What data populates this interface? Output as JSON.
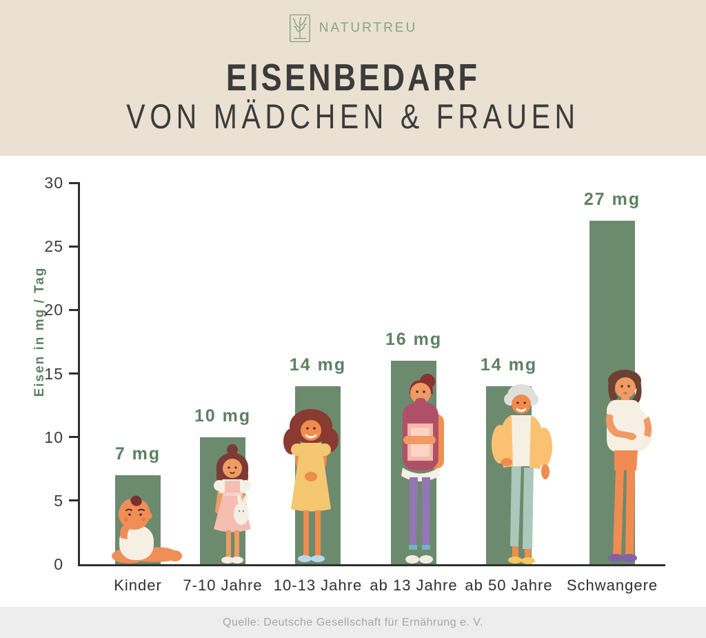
{
  "brand": {
    "name": "NATURTREU",
    "color": "#8aa385"
  },
  "title": {
    "line1": "EISENBEDARF",
    "line2": "VON MÄDCHEN & FRAUEN"
  },
  "chart_data": {
    "type": "bar",
    "title": "Eisenbedarf von Mädchen & Frauen",
    "categories": [
      "Kinder",
      "7-10 Jahre",
      "10-13 Jahre",
      "ab 13 Jahre",
      "ab 50 Jahre",
      "Schwangere"
    ],
    "values": [
      7,
      10,
      14,
      16,
      14,
      27
    ],
    "value_labels": [
      "7 mg",
      "10 mg",
      "14 mg",
      "16 mg",
      "14 mg",
      "27 mg"
    ],
    "xlabel": "",
    "ylabel": "Eisen in mg / Tag",
    "yticks": [
      0,
      5,
      10,
      15,
      20,
      25,
      30
    ],
    "ylim": [
      0,
      30
    ],
    "grid": false,
    "legend": false,
    "bar_color": "#6c8a6e",
    "value_label_color": "#5e8062",
    "ylabel_color": "#5e8062",
    "figures": [
      "sitting-baby",
      "girl-with-bunny",
      "girl-in-yellow-dress",
      "teen-with-books",
      "elderly-woman",
      "pregnant-woman"
    ]
  },
  "footer": {
    "source": "Quelle: Deutsche Gesellschaft für Ernährung e. V."
  }
}
